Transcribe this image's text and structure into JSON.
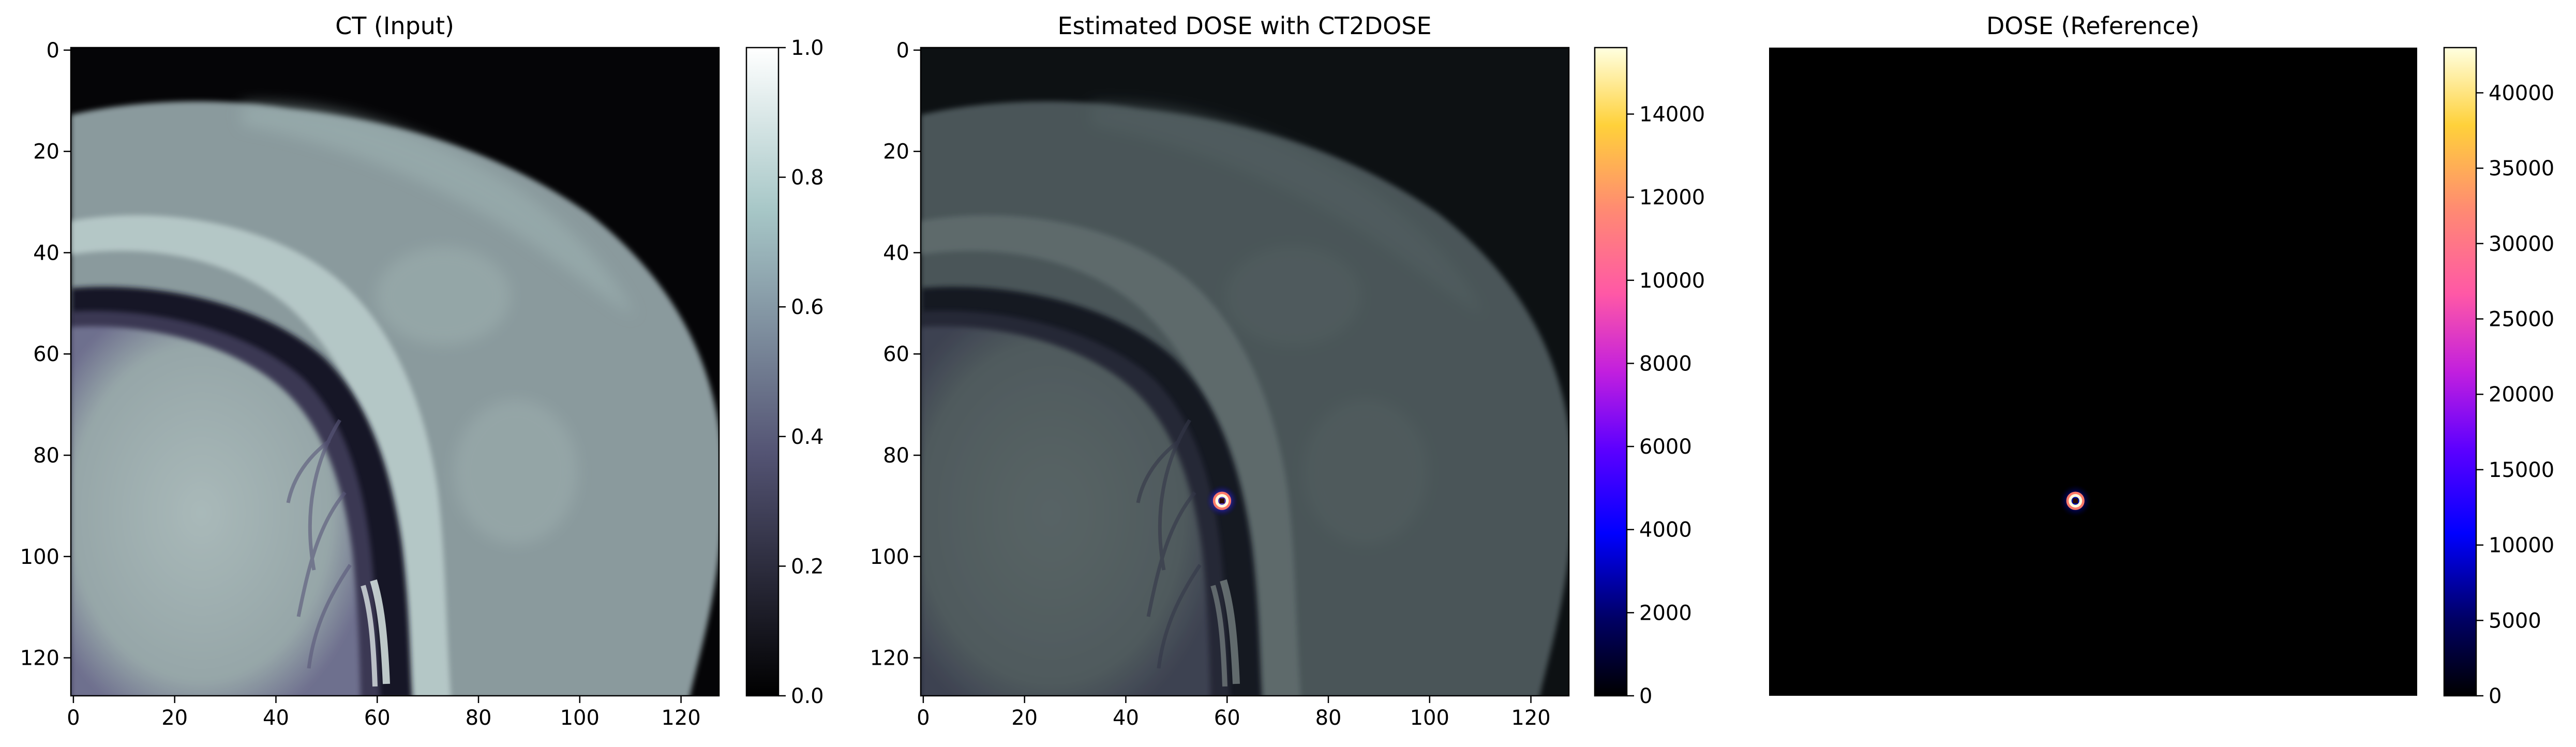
{
  "panels": [
    {
      "title": "CT (Input)",
      "image_size": 128,
      "axes_visible": true,
      "x_ticks": [
        "0",
        "20",
        "40",
        "60",
        "80",
        "100",
        "120"
      ],
      "y_ticks": [
        "0",
        "20",
        "40",
        "60",
        "80",
        "100",
        "120"
      ],
      "colormap": "bone",
      "colorbar_ticks": [
        "0.0",
        "0.2",
        "0.4",
        "0.6",
        "0.8",
        "1.0"
      ],
      "colorbar_range": [
        0,
        1
      ]
    },
    {
      "title": "Estimated DOSE with CT2DOSE",
      "image_size": 128,
      "axes_visible": true,
      "x_ticks": [
        "0",
        "20",
        "40",
        "60",
        "80",
        "100",
        "120"
      ],
      "y_ticks": [
        "0",
        "20",
        "40",
        "60",
        "80",
        "100",
        "120"
      ],
      "colormap": "gnuplot2",
      "colorbar_ticks": [
        "0",
        "2000",
        "4000",
        "6000",
        "8000",
        "10000",
        "12000",
        "14000"
      ],
      "colorbar_range": [
        0,
        15600
      ],
      "dose_spot": {
        "x": 59,
        "y": 89
      }
    },
    {
      "title": "DOSE (Reference)",
      "image_size": 128,
      "axes_visible": false,
      "colormap": "gnuplot2",
      "colorbar_ticks": [
        "0",
        "5000",
        "10000",
        "15000",
        "20000",
        "25000",
        "30000",
        "35000",
        "40000"
      ],
      "colorbar_range": [
        0,
        43000
      ],
      "dose_spot": {
        "x": 60,
        "y": 89
      }
    }
  ]
}
